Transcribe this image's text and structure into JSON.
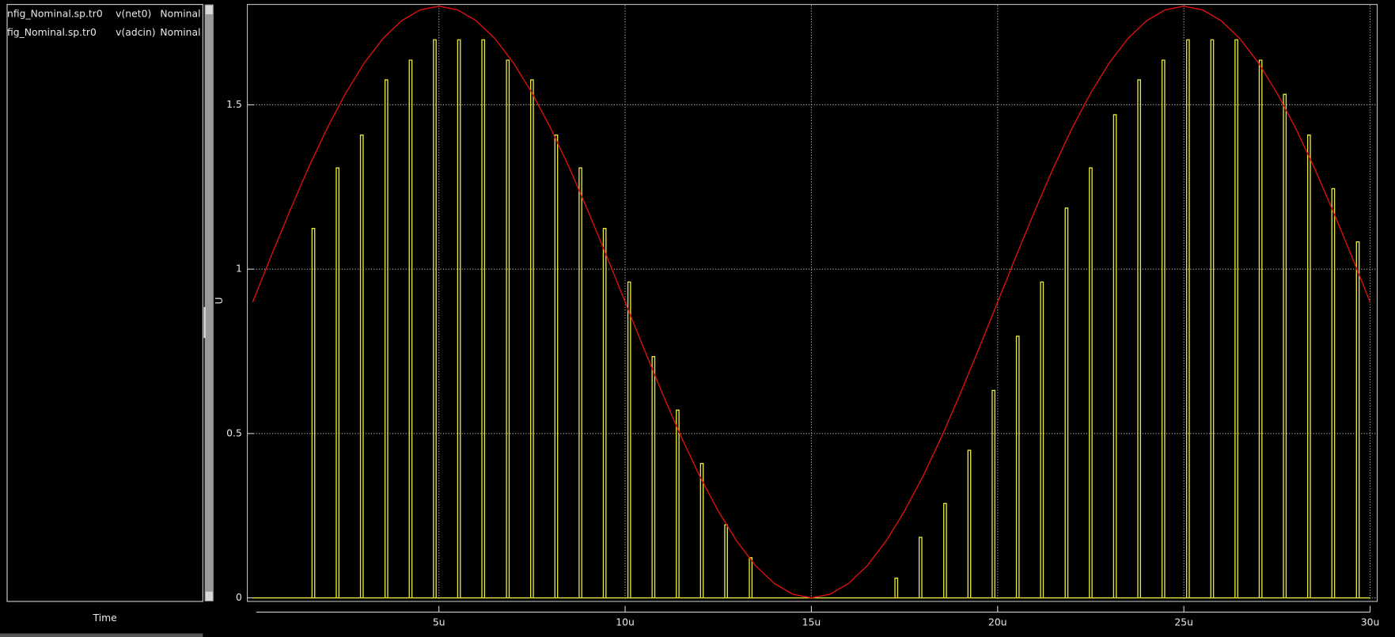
{
  "chart_data": {
    "type": "line",
    "xlabel": "Time",
    "ylabel": "U",
    "xlim": [
      0,
      30
    ],
    "ylim": [
      0,
      1.8
    ],
    "xticks": [
      {
        "value": 5,
        "label": "5u"
      },
      {
        "value": 10,
        "label": "10u"
      },
      {
        "value": 15,
        "label": "15u"
      },
      {
        "value": 20,
        "label": "20u"
      },
      {
        "value": 25,
        "label": "25u"
      },
      {
        "value": 30,
        "label": "30u"
      }
    ],
    "yticks": [
      0,
      0.5,
      1,
      1.5
    ],
    "grid": true,
    "series": [
      {
        "name": "v(net0)",
        "file": "nfig_Nominal.sp.tr0",
        "corner": "Nominal",
        "color": "#e6e63c",
        "style": "pulse",
        "x": [
          1.63,
          2.28,
          2.93,
          3.59,
          4.24,
          4.89,
          5.54,
          6.19,
          6.85,
          7.5,
          8.15,
          8.8,
          9.45,
          10.11,
          10.76,
          11.41,
          12.06,
          12.71,
          13.37,
          17.28,
          17.93,
          18.59,
          19.24,
          19.89,
          20.54,
          21.19,
          21.85,
          22.5,
          23.15,
          23.8,
          24.45,
          25.11,
          25.76,
          26.41,
          27.06,
          27.71,
          28.36,
          29.01,
          29.67
        ],
        "values": [
          1.124,
          1.308,
          1.408,
          1.576,
          1.636,
          1.698,
          1.698,
          1.698,
          1.636,
          1.576,
          1.408,
          1.308,
          1.124,
          0.961,
          0.734,
          0.571,
          0.409,
          0.222,
          0.122,
          0.06,
          0.184,
          0.287,
          0.449,
          0.631,
          0.796,
          0.961,
          1.186,
          1.308,
          1.47,
          1.576,
          1.636,
          1.698,
          1.698,
          1.698,
          1.636,
          1.532,
          1.408,
          1.245,
          1.083
        ]
      },
      {
        "name": "v(adcin)",
        "file": "fig_Nominal.sp.tr0",
        "corner": "Nominal",
        "color": "#e01010",
        "style": "line",
        "x": [
          0,
          0.5,
          1,
          1.5,
          2,
          2.5,
          3,
          3.5,
          4,
          4.5,
          5,
          5.5,
          6,
          6.5,
          7,
          7.5,
          8,
          8.5,
          9,
          9.5,
          10,
          10.5,
          11,
          11.5,
          12,
          12.5,
          13,
          13.5,
          14,
          14.5,
          15,
          15.5,
          16,
          16.5,
          17,
          17.5,
          18,
          18.5,
          19,
          19.5,
          20,
          20.5,
          21,
          21.5,
          22,
          22.5,
          23,
          23.5,
          24,
          24.5,
          25,
          25.5,
          26,
          26.5,
          27,
          27.5,
          28,
          28.5,
          29,
          29.5,
          30
        ],
        "values": [
          0.9,
          1.041,
          1.178,
          1.309,
          1.429,
          1.536,
          1.628,
          1.702,
          1.756,
          1.789,
          1.8,
          1.789,
          1.756,
          1.702,
          1.628,
          1.536,
          1.429,
          1.309,
          1.178,
          1.041,
          0.9,
          0.759,
          0.622,
          0.491,
          0.371,
          0.264,
          0.172,
          0.098,
          0.044,
          0.011,
          0,
          0.011,
          0.044,
          0.098,
          0.172,
          0.264,
          0.371,
          0.491,
          0.622,
          0.759,
          0.9,
          1.041,
          1.178,
          1.309,
          1.429,
          1.536,
          1.628,
          1.702,
          1.756,
          1.789,
          1.8,
          1.789,
          1.756,
          1.702,
          1.628,
          1.536,
          1.429,
          1.309,
          1.178,
          1.041,
          0.9
        ]
      }
    ]
  }
}
